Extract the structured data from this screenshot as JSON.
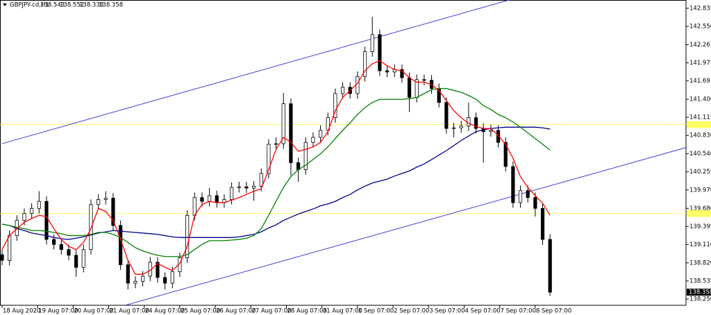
{
  "chart_data": {
    "type": "candlestick",
    "symbol": "GBPJPY-cd,H1",
    "ohlc": [
      138.543,
      138.552,
      138.338,
      138.358
    ],
    "current_price": 138.358,
    "xlim": [
      -1.4,
      461.8
    ],
    "ylim": [
      138.151,
      142.966
    ],
    "yticks": [
      142.835,
      {
        "value": 142.55,
        "label": "142.550"
      },
      142.26,
      141.975,
      141.69,
      {
        "value": 141.4,
        "label": "141.400"
      },
      141.115,
      {
        "value": 140.83,
        "label": "140.830"
      },
      {
        "value": 140.54,
        "label": "140.540"
      },
      140.255,
      {
        "value": 139.97,
        "label": "139.970"
      },
      {
        "value": 139.68,
        "label": "139.680"
      },
      139.395,
      {
        "value": 139.11,
        "label": "139.110"
      },
      {
        "value": 138.82,
        "label": "138.820"
      },
      138.535,
      {
        "value": 138.25,
        "label": "138.250"
      }
    ],
    "xticks": [
      {
        "value": 0,
        "label": "18 Aug 2020"
      },
      {
        "value": 24,
        "label": "19 Aug 07:00"
      },
      {
        "value": 48,
        "label": "20 Aug 07:00"
      },
      {
        "value": 72,
        "label": "21 Aug 07:00"
      },
      {
        "value": 96,
        "label": "24 Aug 07:00"
      },
      {
        "value": 120,
        "label": "25 Aug 07:00"
      },
      {
        "value": 144,
        "label": "26 Aug 07:00"
      },
      {
        "value": 168,
        "label": "27 Aug 07:00"
      },
      {
        "value": 192,
        "label": "28 Aug 07:00"
      },
      {
        "value": 216,
        "label": "31 Aug 07:00"
      },
      {
        "value": 240,
        "label": "1 Sep 07:00"
      },
      {
        "value": 264,
        "label": "2 Sep 07:00"
      },
      {
        "value": 288,
        "label": "3 Sep 07:00"
      },
      {
        "value": 312,
        "label": "4 Sep 07:00"
      },
      {
        "value": 336,
        "label": "7 Sep 07:00"
      },
      {
        "value": 360,
        "label": "8 Sep 07:00"
      }
    ],
    "x": [
      0,
      5,
      10,
      15,
      20,
      25,
      30,
      35,
      40,
      45,
      50,
      55,
      60,
      65,
      70,
      75,
      80,
      85,
      90,
      95,
      100,
      105,
      110,
      115,
      120,
      125,
      130,
      135,
      140,
      145,
      150,
      155,
      160,
      165,
      170,
      175,
      180,
      185,
      190,
      195,
      200,
      205,
      210,
      215,
      220,
      225,
      230,
      235,
      240,
      245,
      250,
      255,
      260,
      265,
      270,
      275,
      280,
      285,
      290,
      295,
      300,
      305,
      310,
      315,
      320,
      325,
      330,
      335,
      340,
      345,
      350,
      355,
      360,
      365,
      370
    ],
    "open": [
      138.95,
      138.86,
      139.25,
      139.49,
      139.6,
      139.68,
      139.79,
      139.19,
      139.11,
      139.03,
      138.94,
      138.75,
      139.03,
      139.74,
      139.82,
      139.84,
      139.41,
      138.79,
      138.5,
      138.53,
      138.61,
      138.83,
      138.59,
      138.5,
      138.68,
      138.9,
      139.57,
      139.85,
      139.79,
      139.88,
      139.77,
      139.82,
      140.01,
      140.02,
      140.0,
      140.03,
      140.23,
      140.69,
      140.7,
      141.33,
      140.4,
      140.29,
      140.72,
      140.8,
      140.91,
      141.11,
      141.49,
      141.59,
      141.49,
      141.76,
      142.15,
      142.42,
      141.85,
      141.83,
      141.87,
      141.74,
      141.43,
      141.71,
      141.7,
      141.57,
      141.35,
      140.94,
      140.95,
      140.98,
      141.11,
      140.94,
      140.89,
      140.91,
      140.72,
      140.34,
      139.77,
      139.96,
      139.85,
      139.68,
      139.19
    ],
    "high": [
      139.03,
      139.33,
      139.57,
      139.68,
      139.76,
      139.95,
      139.87,
      139.27,
      139.19,
      139.11,
      139.02,
      139.11,
      139.82,
      139.9,
      139.95,
      139.92,
      139.49,
      138.87,
      138.61,
      138.69,
      138.91,
      138.91,
      138.67,
      138.76,
      138.98,
      139.65,
      139.93,
      139.93,
      140.0,
      139.96,
      139.9,
      140.09,
      140.1,
      140.1,
      140.11,
      140.31,
      140.77,
      140.8,
      141.5,
      141.41,
      140.48,
      140.8,
      140.88,
      140.99,
      141.19,
      141.57,
      141.67,
      141.67,
      141.84,
      142.23,
      142.7,
      142.5,
      141.93,
      141.95,
      141.95,
      141.82,
      141.79,
      141.79,
      141.78,
      141.65,
      141.43,
      141.03,
      141.06,
      141.35,
      141.19,
      141.02,
      141.0,
      140.99,
      140.8,
      140.42,
      140.04,
      140.04,
      139.93,
      139.76,
      139.27
    ],
    "low": [
      138.78,
      138.78,
      139.17,
      139.41,
      139.52,
      139.6,
      139.11,
      139.03,
      138.95,
      138.86,
      138.6,
      138.67,
      138.95,
      139.66,
      139.74,
      139.33,
      138.71,
      138.4,
      138.42,
      138.45,
      138.53,
      138.51,
      138.4,
      138.42,
      138.6,
      138.82,
      139.49,
      139.71,
      139.71,
      139.69,
      139.69,
      139.74,
      139.93,
      139.92,
      139.8,
      139.95,
      140.15,
      140.61,
      140.62,
      140.2,
      140.1,
      140.21,
      140.64,
      140.72,
      140.83,
      141.03,
      141.41,
      141.41,
      141.41,
      141.68,
      142.07,
      141.77,
      141.75,
      141.75,
      141.66,
      141.2,
      141.35,
      141.62,
      141.49,
      141.27,
      140.86,
      140.8,
      140.87,
      140.9,
      140.86,
      140.4,
      140.81,
      140.64,
      140.26,
      139.69,
      139.69,
      139.77,
      139.55,
      139.1,
      138.3
    ],
    "close": [
      138.86,
      139.25,
      139.49,
      139.6,
      139.68,
      139.79,
      139.19,
      139.11,
      139.03,
      138.94,
      138.75,
      139.03,
      139.74,
      139.82,
      139.84,
      139.41,
      138.79,
      138.5,
      138.53,
      138.61,
      138.83,
      138.59,
      138.5,
      138.68,
      138.9,
      139.57,
      139.85,
      139.79,
      139.88,
      139.77,
      139.82,
      140.01,
      140.02,
      140.0,
      140.03,
      140.23,
      140.69,
      140.7,
      141.33,
      140.4,
      140.29,
      140.72,
      140.8,
      140.91,
      141.11,
      141.49,
      141.59,
      141.49,
      141.76,
      142.15,
      142.42,
      141.85,
      141.83,
      141.87,
      141.74,
      141.43,
      141.71,
      141.7,
      141.57,
      141.35,
      140.94,
      140.95,
      140.98,
      141.11,
      140.94,
      140.89,
      140.91,
      140.72,
      140.34,
      139.77,
      139.96,
      139.85,
      139.68,
      139.19,
      138.358
    ],
    "lines": [
      {
        "color": "#00008b",
        "values": [
          139.43,
          139.41,
          139.36,
          139.33,
          139.29,
          139.27,
          139.25,
          139.22,
          139.2,
          139.19,
          139.21,
          139.23,
          139.26,
          139.29,
          139.31,
          139.33,
          139.32,
          139.31,
          139.3,
          139.29,
          139.28,
          139.27,
          139.25,
          139.23,
          139.22,
          139.22,
          139.22,
          139.22,
          139.22,
          139.22,
          139.22,
          139.22,
          139.23,
          139.25,
          139.27,
          139.31,
          139.37,
          139.42,
          139.49,
          139.54,
          139.59,
          139.63,
          139.67,
          139.72,
          139.75,
          139.79,
          139.85,
          139.9,
          139.97,
          140.03,
          140.08,
          140.11,
          140.14,
          140.19,
          140.23,
          140.27,
          140.33,
          140.38,
          140.45,
          140.52,
          140.59,
          140.67,
          140.75,
          140.82,
          140.89,
          140.92,
          140.94,
          140.95,
          140.96,
          140.96,
          140.96,
          140.96,
          140.96,
          140.95,
          140.93
        ]
      },
      {
        "color": "#008000",
        "values": [
          139.43,
          139.41,
          139.38,
          139.36,
          139.33,
          139.33,
          139.32,
          139.3,
          139.28,
          139.25,
          139.25,
          139.25,
          139.27,
          139.3,
          139.3,
          139.27,
          139.22,
          139.14,
          139.06,
          139.01,
          138.97,
          138.94,
          138.92,
          138.92,
          138.92,
          138.95,
          139.03,
          139.11,
          139.17,
          139.17,
          139.17,
          139.18,
          139.19,
          139.21,
          139.25,
          139.36,
          139.57,
          139.79,
          140.01,
          140.18,
          140.29,
          140.36,
          140.45,
          140.54,
          140.65,
          140.78,
          140.91,
          141.03,
          141.16,
          141.27,
          141.35,
          141.4,
          141.4,
          141.4,
          141.4,
          141.41,
          141.43,
          141.49,
          141.55,
          141.57,
          141.57,
          141.54,
          141.51,
          141.46,
          141.4,
          141.3,
          141.24,
          141.16,
          141.11,
          141.04,
          140.96,
          140.87,
          140.78,
          140.69,
          140.6
        ]
      },
      {
        "color": "#ff0000",
        "values": [
          139.03,
          139.25,
          139.36,
          139.46,
          139.52,
          139.57,
          139.55,
          139.36,
          139.19,
          139.08,
          139.03,
          139.14,
          139.36,
          139.68,
          139.63,
          139.49,
          139.19,
          138.86,
          138.64,
          138.64,
          138.7,
          138.81,
          138.75,
          138.7,
          138.81,
          139.08,
          139.57,
          139.74,
          139.79,
          139.77,
          139.77,
          139.81,
          139.85,
          139.9,
          139.95,
          139.99,
          140.29,
          140.61,
          140.8,
          140.72,
          140.58,
          140.61,
          140.65,
          140.72,
          140.89,
          141.22,
          141.43,
          141.54,
          141.65,
          141.85,
          141.96,
          142.01,
          141.93,
          141.87,
          141.85,
          141.74,
          141.67,
          141.67,
          141.63,
          141.54,
          141.38,
          141.22,
          141.11,
          141.02,
          140.97,
          140.94,
          140.94,
          140.83,
          140.69,
          140.47,
          140.18,
          140.01,
          139.88,
          139.76,
          139.57
        ]
      }
    ],
    "levels": [
      141.0,
      139.6
    ],
    "level_color": "#ffff66",
    "trendlines": [
      {
        "color": "#3b3bd6",
        "x": [
          0,
          343
        ],
        "y": [
          140.7,
          142.97
        ]
      },
      {
        "color": "#3b3bd6",
        "x": [
          83,
          462
        ],
        "y": [
          138.15,
          140.64
        ]
      }
    ]
  }
}
